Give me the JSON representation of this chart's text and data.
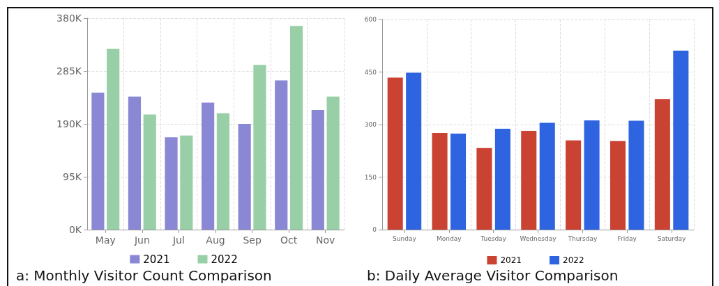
{
  "chart_data": [
    {
      "type": "bar",
      "title": "a: Monthly Visitor Count Comparison",
      "categories": [
        "May",
        "Jun",
        "Jul",
        "Aug",
        "Sep",
        "Oct",
        "Nov"
      ],
      "series": [
        {
          "name": "2021",
          "color": "#8a87d4",
          "values": [
            246000,
            239000,
            166000,
            228000,
            190000,
            268000,
            215000
          ]
        },
        {
          "name": "2022",
          "color": "#98cfa6",
          "values": [
            325000,
            207000,
            169000,
            209000,
            296000,
            366000,
            239000
          ]
        }
      ],
      "ylim": [
        0,
        380000
      ],
      "yticks": [
        {
          "value": 0,
          "label": "0K"
        },
        {
          "value": 95000,
          "label": "95K"
        },
        {
          "value": 190000,
          "label": "190K"
        },
        {
          "value": 285000,
          "label": "285K"
        },
        {
          "value": 380000,
          "label": "380K"
        }
      ],
      "grid": true,
      "legend": "bottom"
    },
    {
      "type": "bar",
      "title": "b: Daily Average Visitor Comparison",
      "categories": [
        "Sunday",
        "Monday",
        "Tuesday",
        "Wednesday",
        "Thursday",
        "Friday",
        "Saturday"
      ],
      "series": [
        {
          "name": "2021",
          "color": "#c94232",
          "values": [
            434,
            276,
            233,
            282,
            255,
            253,
            373
          ]
        },
        {
          "name": "2022",
          "color": "#2e64e0",
          "values": [
            448,
            274,
            288,
            305,
            312,
            311,
            511
          ]
        }
      ],
      "ylim": [
        0,
        600
      ],
      "yticks": [
        0,
        150,
        300,
        450,
        600
      ],
      "grid": true,
      "legend": "bottom"
    }
  ]
}
